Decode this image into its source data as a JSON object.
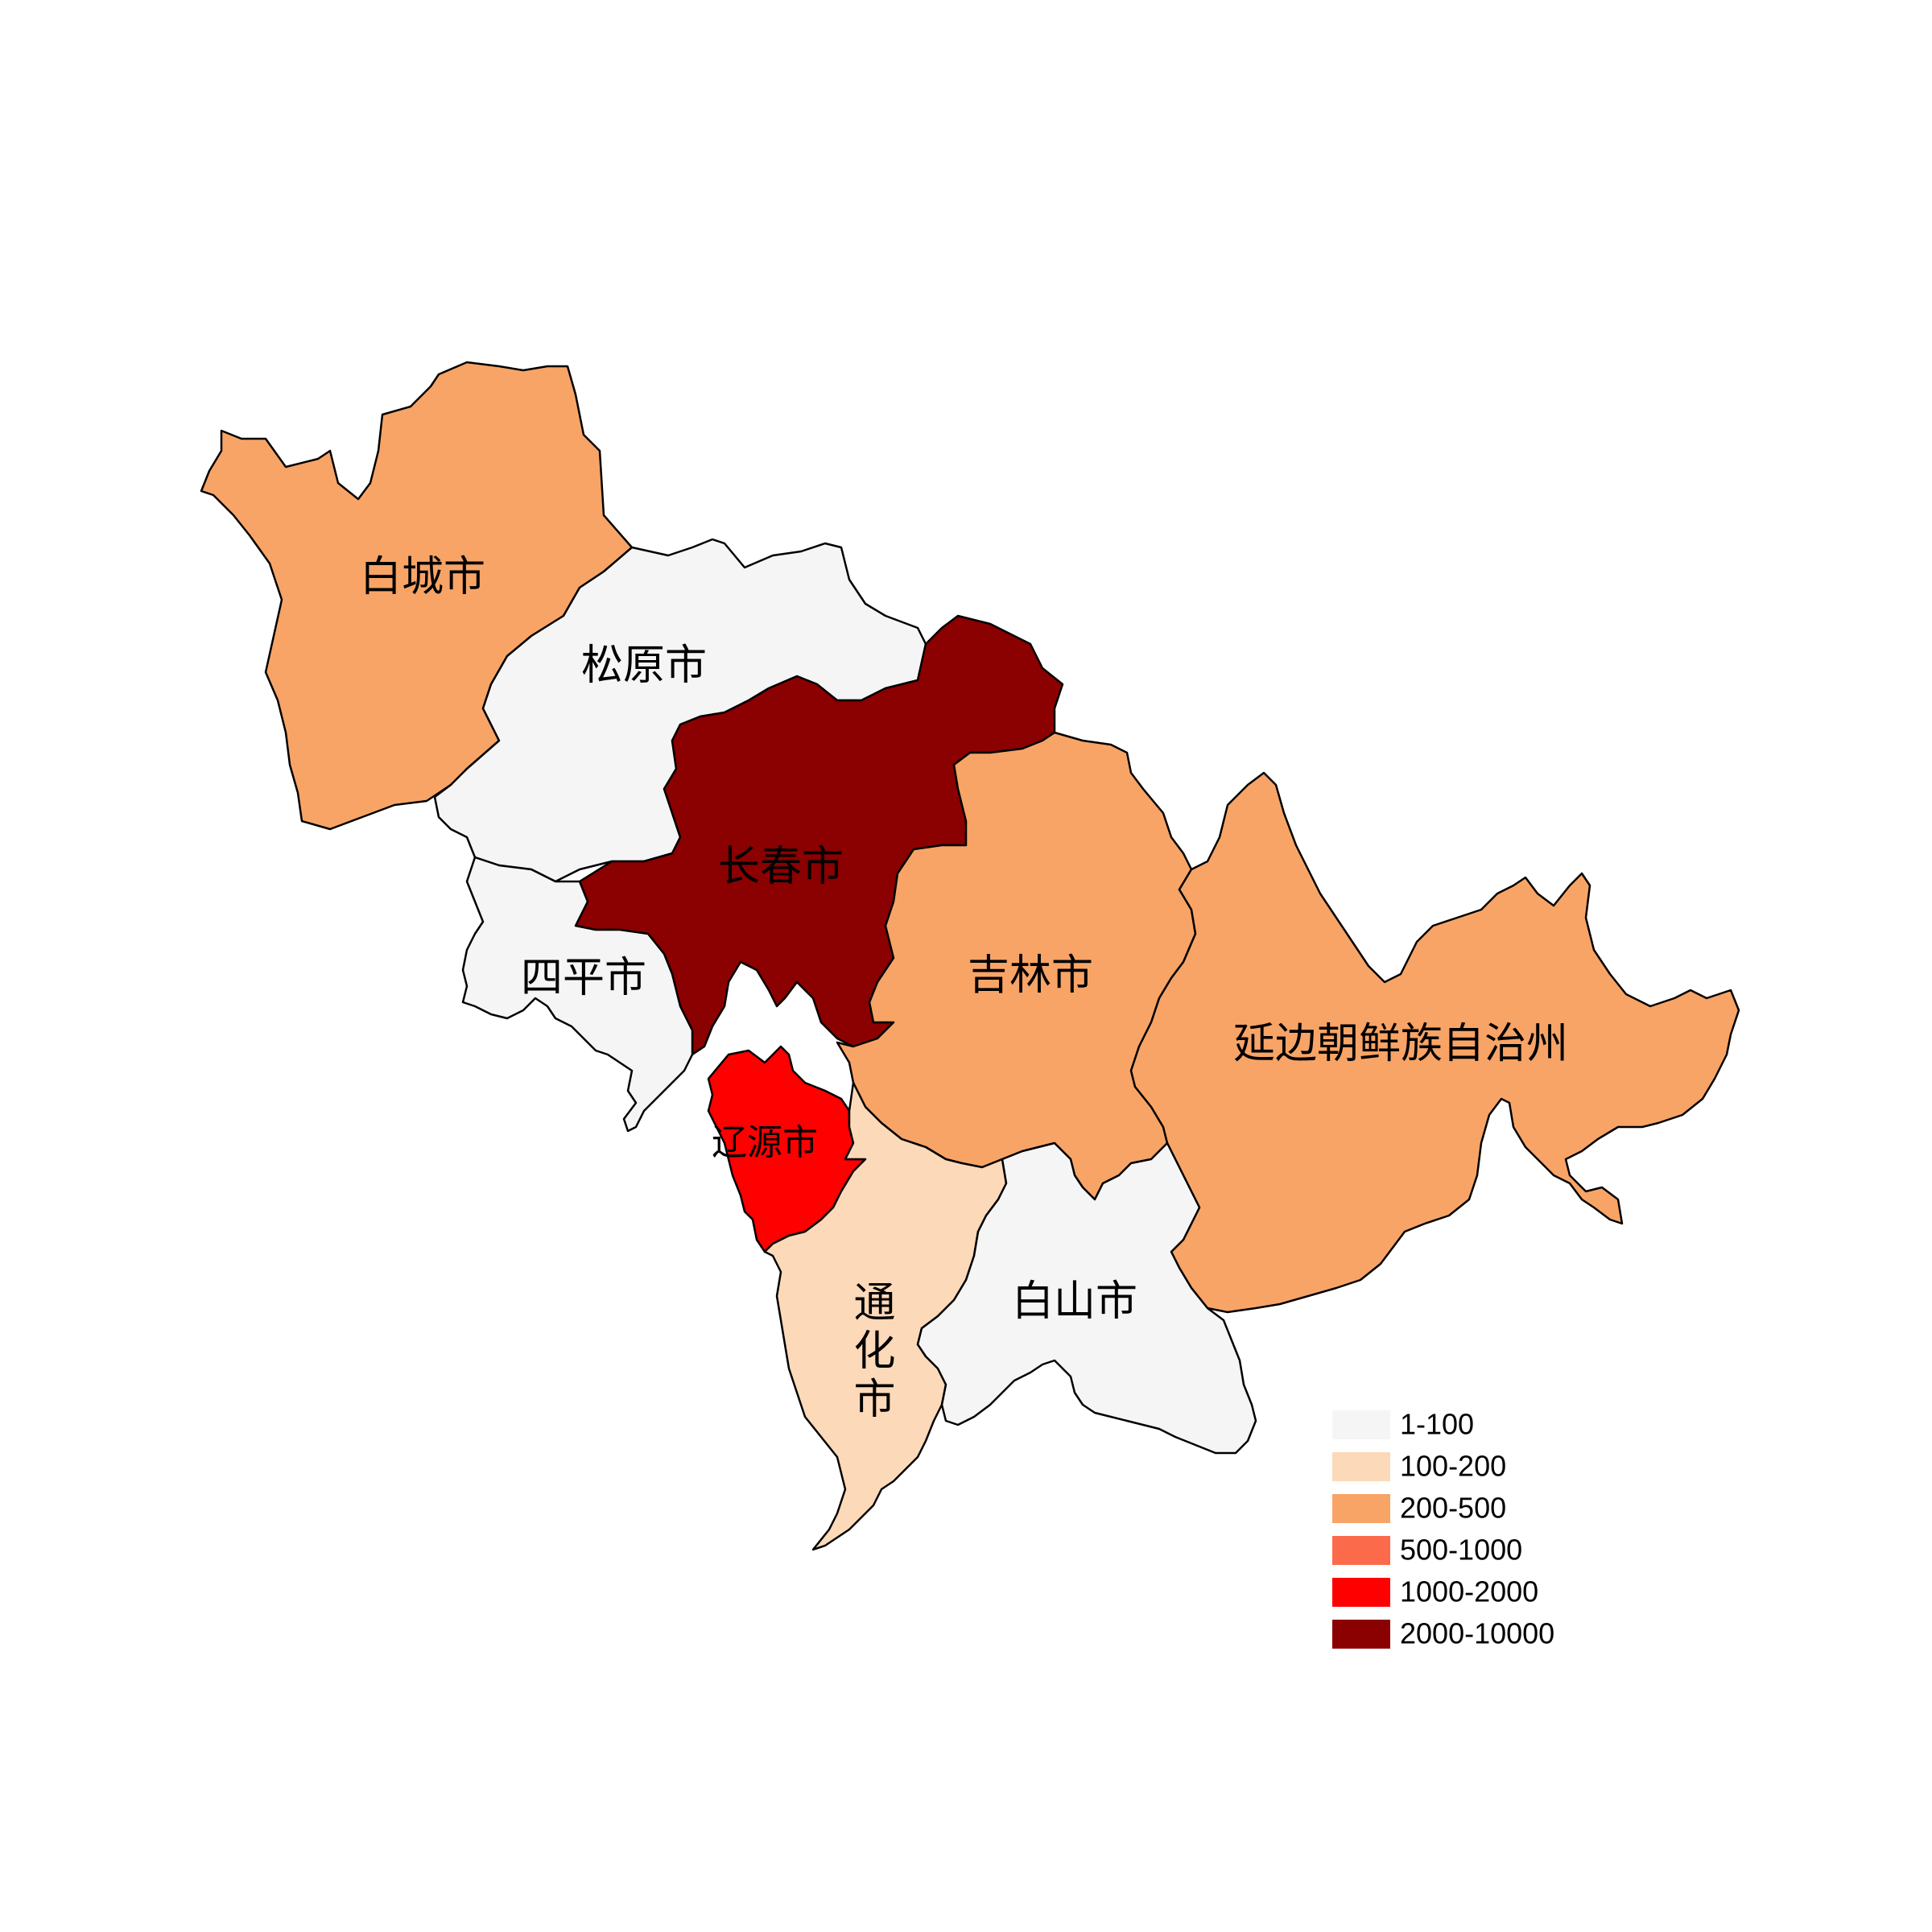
{
  "map": {
    "regions": [
      {
        "id": "baicheng",
        "name": "白城市",
        "fill": "#f8a466"
      },
      {
        "id": "songyuan",
        "name": "松原市",
        "fill": "#f5f5f5"
      },
      {
        "id": "changchun",
        "name": "长春市",
        "fill": "#8b0000"
      },
      {
        "id": "jilin",
        "name": "吉林市",
        "fill": "#f8a466"
      },
      {
        "id": "yanbian",
        "name": "延边朝鲜族自治州",
        "fill": "#f8a466"
      },
      {
        "id": "siping",
        "name": "四平市",
        "fill": "#f5f5f5"
      },
      {
        "id": "liaoyuan",
        "name": "辽源市",
        "fill": "#ff0000"
      },
      {
        "id": "tonghua",
        "name": "通化市",
        "fill": "#fcd9b8"
      },
      {
        "id": "baishan",
        "name": "白山市",
        "fill": "#f5f5f5"
      }
    ],
    "legend": [
      {
        "label": "1-100",
        "color": "#f5f5f5"
      },
      {
        "label": "100-200",
        "color": "#fcd9b8"
      },
      {
        "label": "200-500",
        "color": "#f8a466"
      },
      {
        "label": "500-1000",
        "color": "#fb6a4a"
      },
      {
        "label": "1000-2000",
        "color": "#ff0000"
      },
      {
        "label": "2000-10000",
        "color": "#8b0000"
      }
    ]
  }
}
